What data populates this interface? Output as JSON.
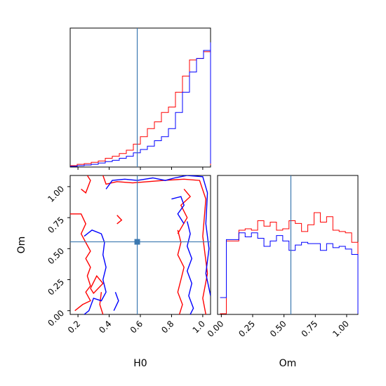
{
  "chart_data": {
    "type": "corner",
    "parameters": [
      "H0",
      "Om"
    ],
    "truths": {
      "H0": 0.58,
      "Om": 0.555
    },
    "colors": {
      "series_a": "#ff0000",
      "series_b": "#0000ff",
      "truth": "#3b78b0"
    },
    "axes": {
      "H0": {
        "label": "H0",
        "range": [
          0.15,
          1.05
        ],
        "ticks": [
          "0.2",
          "0.4",
          "0.6",
          "0.8",
          "1.0"
        ],
        "tick_values": [
          0.2,
          0.4,
          0.6,
          0.8,
          1.0
        ]
      },
      "Om": {
        "label": "Om",
        "range": [
          -0.03,
          1.09
        ],
        "ticks": [
          "0.00",
          "0.25",
          "0.50",
          "0.75",
          "1.00"
        ],
        "tick_values": [
          0.0,
          0.25,
          0.5,
          0.75,
          1.0
        ]
      }
    },
    "hist_H0": {
      "bin_edges_from": 0.15,
      "bin_width": 0.045,
      "series_a": [
        0.005,
        0.015,
        0.02,
        0.03,
        0.04,
        0.06,
        0.075,
        0.095,
        0.12,
        0.165,
        0.22,
        0.28,
        0.33,
        0.4,
        0.44,
        0.55,
        0.67,
        0.79,
        0.8,
        0.85,
        0.9,
        0.85,
        0.64,
        0.01
      ],
      "series_b": [
        0.0,
        0.005,
        0.01,
        0.015,
        0.025,
        0.035,
        0.045,
        0.06,
        0.075,
        0.1,
        0.125,
        0.15,
        0.19,
        0.22,
        0.28,
        0.4,
        0.55,
        0.7,
        0.8,
        0.86,
        0.92,
        0.88,
        0.64,
        0.02
      ]
    },
    "hist_Om": {
      "bin_edges_from": -0.01,
      "bin_width": 0.05,
      "series_a": [
        0.0,
        0.54,
        0.54,
        0.62,
        0.63,
        0.62,
        0.69,
        0.65,
        0.68,
        0.62,
        0.63,
        0.69,
        0.67,
        0.61,
        0.66,
        0.75,
        0.68,
        0.72,
        0.62,
        0.61,
        0.6,
        0.53,
        0.0
      ],
      "series_b": [
        0.12,
        0.55,
        0.55,
        0.6,
        0.57,
        0.6,
        0.56,
        0.5,
        0.54,
        0.58,
        0.54,
        0.47,
        0.51,
        0.53,
        0.52,
        0.52,
        0.47,
        0.52,
        0.49,
        0.5,
        0.48,
        0.44,
        0.0
      ]
    },
    "contours_H0_Om": {
      "series_a": [
        [
          [
            0.15,
            0.78
          ],
          [
            0.22,
            0.78
          ],
          [
            0.25,
            0.7
          ],
          [
            0.22,
            0.62
          ],
          [
            0.25,
            0.55
          ],
          [
            0.28,
            0.48
          ],
          [
            0.25,
            0.42
          ],
          [
            0.28,
            0.35
          ],
          [
            0.26,
            0.28
          ],
          [
            0.28,
            0.2
          ],
          [
            0.25,
            0.15
          ],
          [
            0.28,
            0.08
          ],
          [
            0.23,
            0.05
          ],
          [
            0.18,
            0.0
          ]
        ],
        [
          [
            0.22,
            0.98
          ],
          [
            0.25,
            0.95
          ],
          [
            0.28,
            1.05
          ],
          [
            0.26,
            1.09
          ]
        ],
        [
          [
            0.36,
            1.09
          ],
          [
            0.38,
            1.02
          ],
          [
            0.45,
            1.04
          ],
          [
            0.55,
            1.03
          ],
          [
            0.65,
            1.04
          ],
          [
            0.75,
            1.05
          ],
          [
            0.88,
            1.06
          ],
          [
            0.98,
            1.05
          ],
          [
            1.02,
            0.9
          ],
          [
            1.0,
            0.6
          ],
          [
            1.03,
            0.3
          ],
          [
            1.0,
            0.1
          ],
          [
            1.02,
            -0.03
          ]
        ],
        [
          [
            0.36,
            -0.03
          ],
          [
            0.34,
            0.05
          ],
          [
            0.35,
            0.15
          ]
        ],
        [
          [
            0.28,
            0.18
          ],
          [
            0.32,
            0.28
          ],
          [
            0.36,
            0.22
          ],
          [
            0.3,
            0.14
          ],
          [
            0.28,
            0.18
          ]
        ],
        [
          [
            0.84,
            0.65
          ],
          [
            0.86,
            0.55
          ],
          [
            0.84,
            0.45
          ],
          [
            0.88,
            0.35
          ],
          [
            0.86,
            0.25
          ],
          [
            0.84,
            0.15
          ],
          [
            0.87,
            0.05
          ],
          [
            0.85,
            -0.03
          ]
        ],
        [
          [
            0.88,
            0.98
          ],
          [
            0.92,
            0.92
          ],
          [
            0.86,
            0.85
          ],
          [
            0.9,
            0.75
          ],
          [
            0.84,
            0.62
          ]
        ],
        [
          [
            0.45,
            0.77
          ],
          [
            0.48,
            0.73
          ],
          [
            0.45,
            0.7
          ]
        ]
      ],
      "series_b": [
        [
          [
            0.24,
            0.6
          ],
          [
            0.29,
            0.65
          ],
          [
            0.35,
            0.62
          ],
          [
            0.37,
            0.55
          ],
          [
            0.36,
            0.45
          ],
          [
            0.38,
            0.35
          ],
          [
            0.36,
            0.25
          ],
          [
            0.38,
            0.15
          ],
          [
            0.35,
            0.08
          ],
          [
            0.3,
            0.1
          ],
          [
            0.27,
            0.0
          ],
          [
            0.24,
            -0.03
          ]
        ],
        [
          [
            0.38,
            0.98
          ],
          [
            0.42,
            1.05
          ],
          [
            0.5,
            1.06
          ],
          [
            0.58,
            1.05
          ],
          [
            0.68,
            1.07
          ],
          [
            0.76,
            1.05
          ],
          [
            0.82,
            1.07
          ],
          [
            0.9,
            1.09
          ],
          [
            1.0,
            1.08
          ],
          [
            1.03,
            0.95
          ],
          [
            1.02,
            0.7
          ],
          [
            1.04,
            0.5
          ],
          [
            1.02,
            0.3
          ],
          [
            1.05,
            0.12
          ]
        ],
        [
          [
            0.9,
            0.72
          ],
          [
            0.92,
            0.62
          ],
          [
            0.9,
            0.52
          ],
          [
            0.93,
            0.42
          ],
          [
            0.9,
            0.32
          ],
          [
            0.93,
            0.22
          ],
          [
            0.91,
            0.12
          ],
          [
            0.94,
            0.02
          ],
          [
            0.92,
            -0.03
          ]
        ],
        [
          [
            0.8,
            0.9
          ],
          [
            0.86,
            0.92
          ],
          [
            0.88,
            0.85
          ],
          [
            0.84,
            0.78
          ],
          [
            0.88,
            0.7
          ]
        ],
        [
          [
            0.43,
            0.0
          ],
          [
            0.46,
            0.08
          ],
          [
            0.44,
            0.15
          ]
        ]
      ]
    }
  }
}
